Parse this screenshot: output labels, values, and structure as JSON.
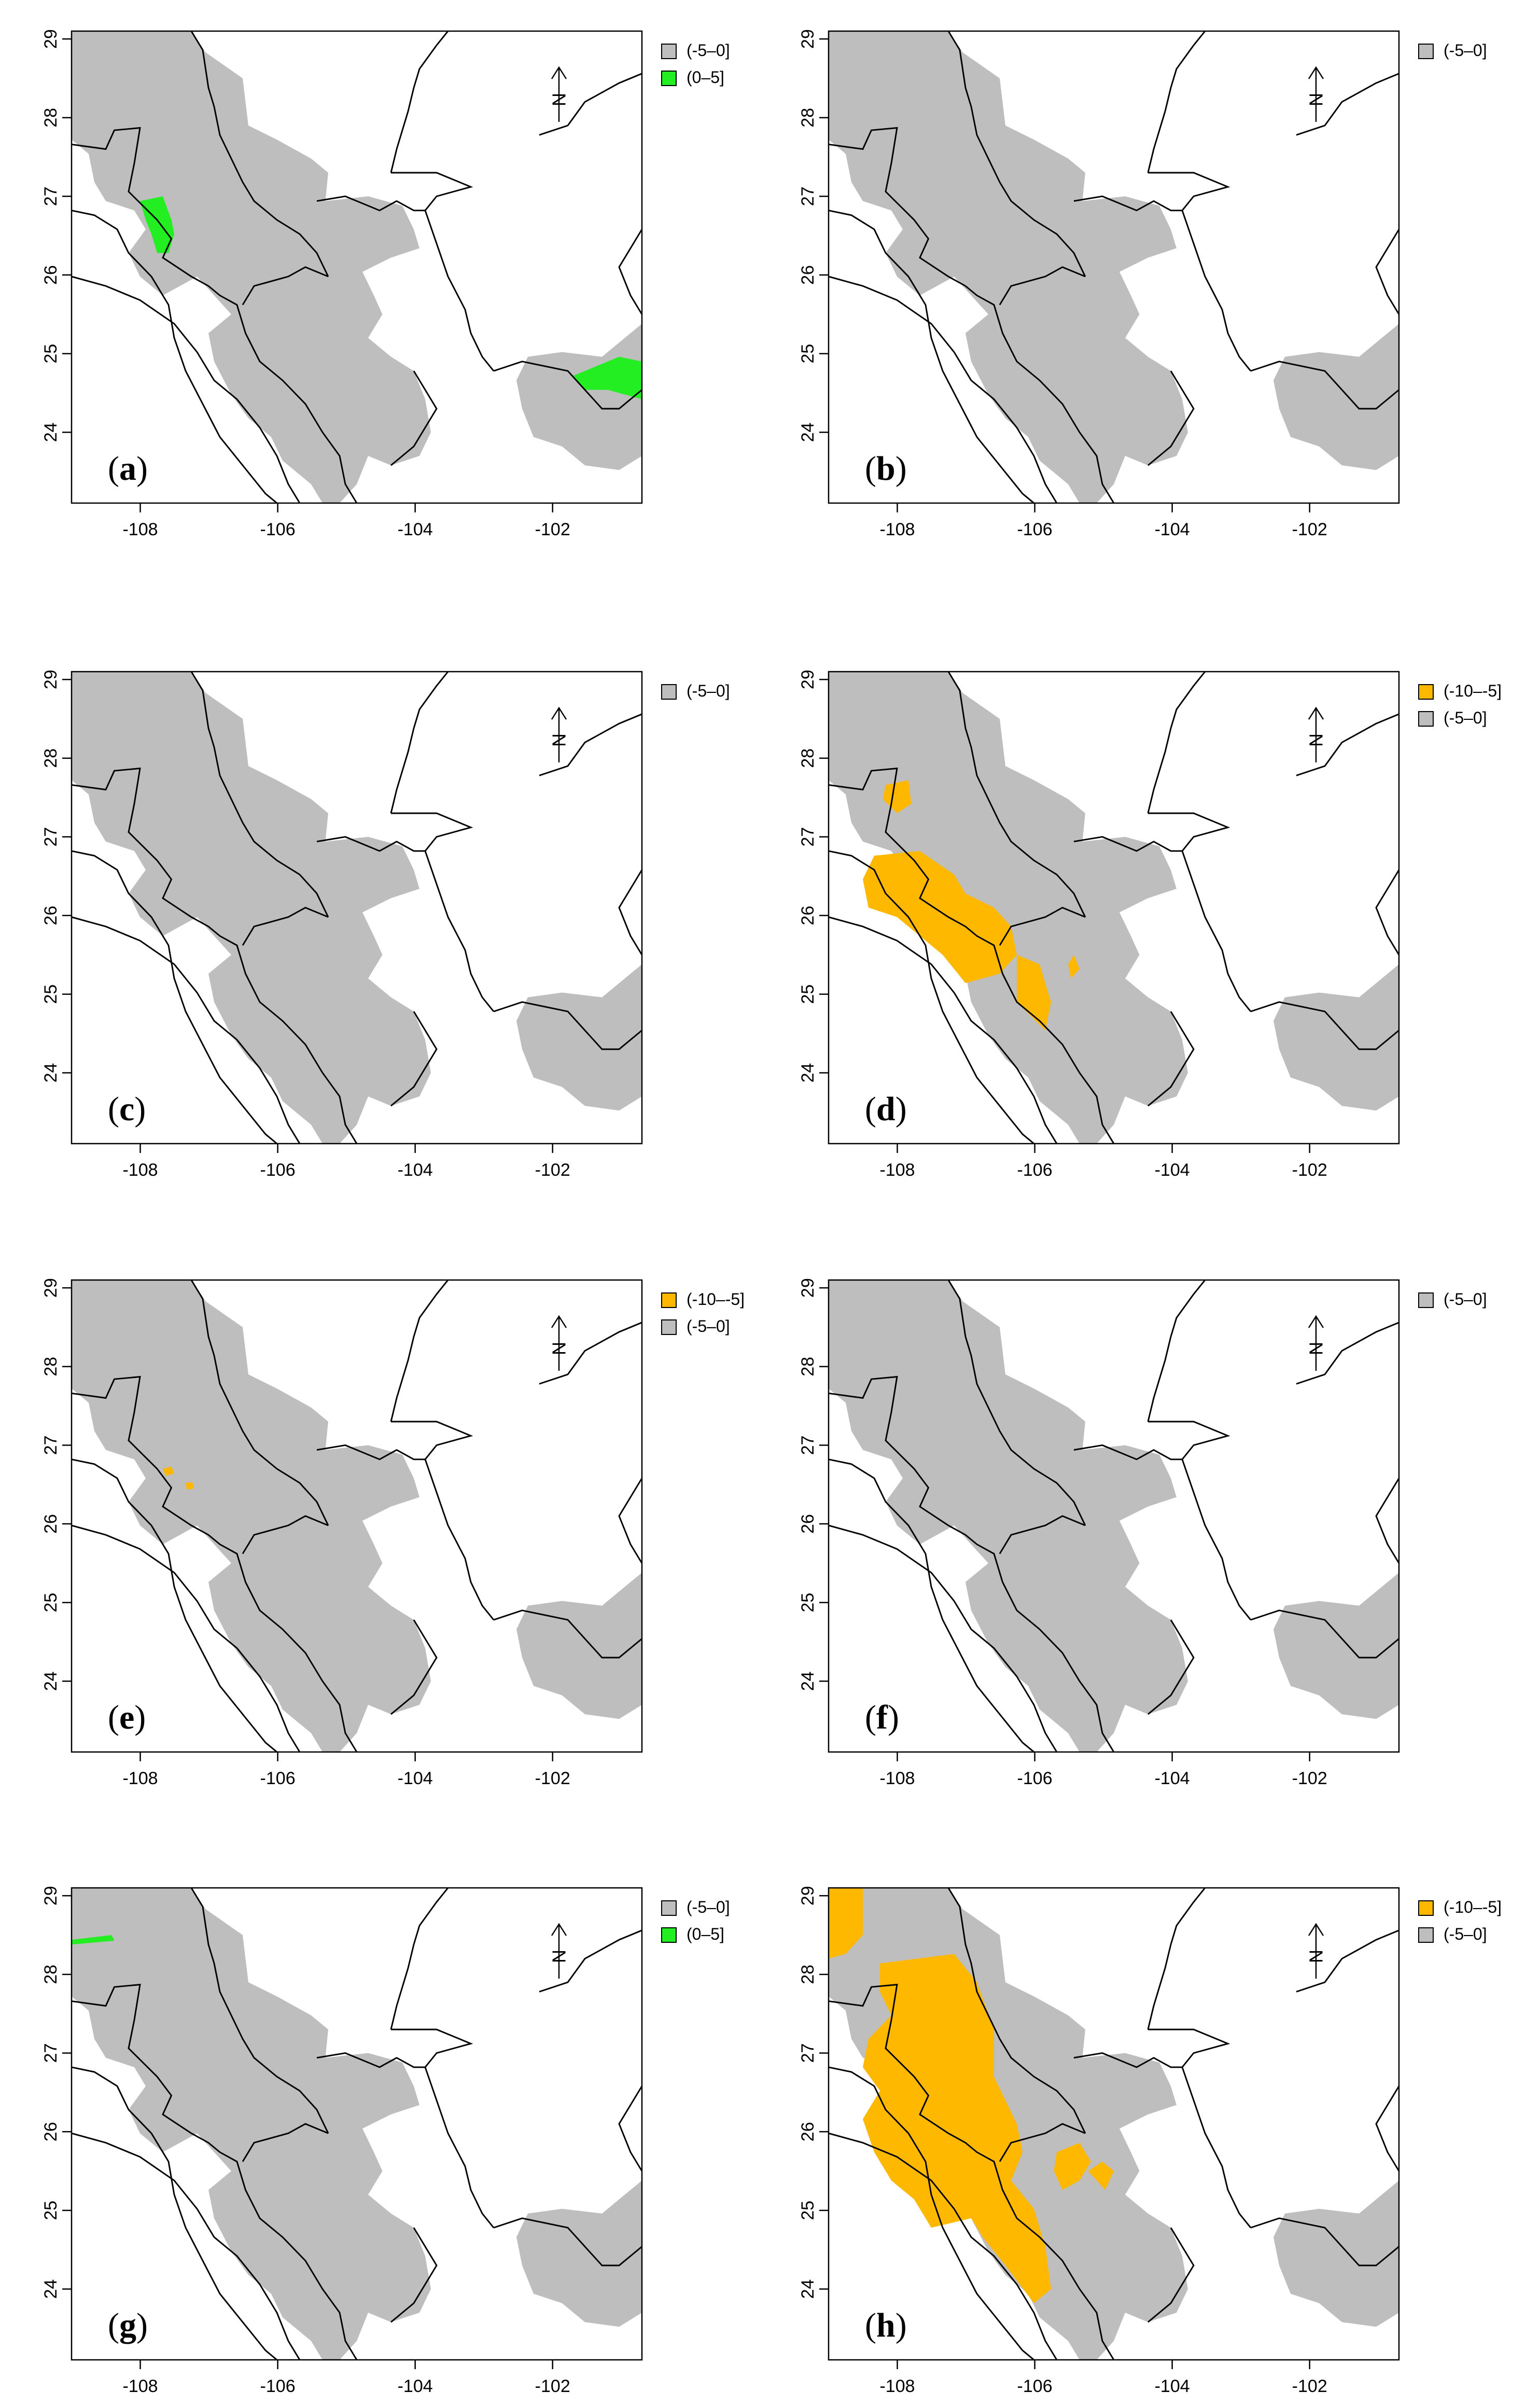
{
  "legend_categories": {
    "neg10_neg5": {
      "label": "(-10–-5]",
      "color": "#ffb800"
    },
    "neg5_0": {
      "label": "(-5–0]",
      "color": "#bebebe"
    },
    "0_5": {
      "label": "(0–5]",
      "color": "#22ee22"
    }
  },
  "axes": {
    "x_ticks": [
      "-108",
      "-106",
      "-104",
      "-102"
    ],
    "x_tick_values": [
      -108,
      -106,
      -104,
      -102
    ],
    "y_ticks": [
      "24",
      "25",
      "26",
      "27",
      "28",
      "29"
    ],
    "y_tick_values": [
      24,
      25,
      26,
      27,
      28,
      29
    ],
    "xlim": [
      -109.0,
      -100.7
    ],
    "ylim": [
      23.1,
      29.1
    ]
  },
  "north_arrow": {
    "label": "N"
  },
  "panels": [
    {
      "id": "a",
      "letter": "(",
      "letter_bold": "a",
      "letter_close": ")",
      "legend": [
        "neg5_0",
        "0_5"
      ]
    },
    {
      "id": "b",
      "letter": "(",
      "letter_bold": "b",
      "letter_close": ")",
      "legend": [
        "neg5_0"
      ]
    },
    {
      "id": "c",
      "letter": "(",
      "letter_bold": "c",
      "letter_close": ")",
      "legend": [
        "neg5_0"
      ]
    },
    {
      "id": "d",
      "letter": "(",
      "letter_bold": "d",
      "letter_close": ")",
      "legend": [
        "neg10_neg5",
        "neg5_0"
      ]
    },
    {
      "id": "e",
      "letter": "(",
      "letter_bold": "e",
      "letter_close": ")",
      "legend": [
        "neg10_neg5",
        "neg5_0"
      ]
    },
    {
      "id": "f",
      "letter": "(",
      "letter_bold": "f",
      "letter_close": ")",
      "legend": [
        "neg5_0"
      ]
    },
    {
      "id": "g",
      "letter": "(",
      "letter_bold": "g",
      "letter_close": ")",
      "legend": [
        "neg5_0",
        "0_5"
      ]
    },
    {
      "id": "h",
      "letter": "(",
      "letter_bold": "h",
      "letter_close": ")",
      "legend": [
        "neg10_neg5",
        "neg5_0"
      ]
    }
  ]
}
